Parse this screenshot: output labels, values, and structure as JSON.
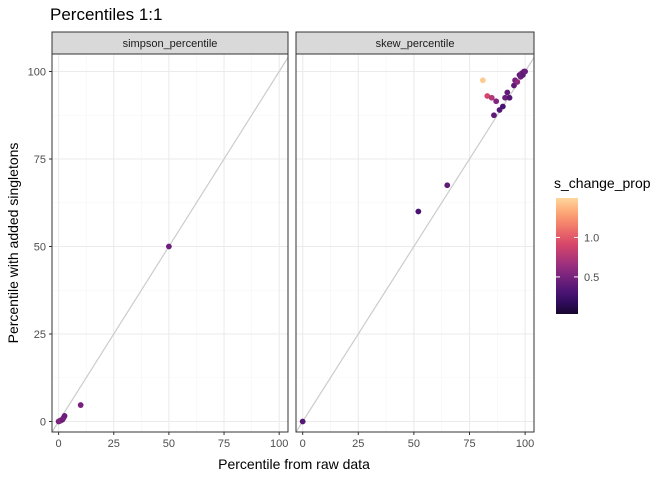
{
  "chart_data": {
    "type": "scatter",
    "title": "Percentiles 1:1",
    "xlabel": "Percentile from raw data",
    "ylabel": "Percentile with added singletons",
    "xlim": [
      -3,
      104
    ],
    "ylim": [
      -3,
      105
    ],
    "x_ticks": [
      0,
      25,
      50,
      75,
      100
    ],
    "y_ticks": [
      0,
      25,
      50,
      75,
      100
    ],
    "grid": true,
    "reference_line": "y = x",
    "colors": {
      "panel_border": "#333333",
      "strip_fill": "#d9d9d9",
      "grid_major": "#ebebeb",
      "grid_minor": "#f5f5f5",
      "reference_line": "#cccccc"
    },
    "legend": {
      "title": "s_change_prop",
      "placement": "right",
      "range": [
        0.03,
        1.5
      ],
      "ticks": [
        0.5,
        1.0
      ],
      "tick_labels": [
        "0.5",
        "1.0"
      ],
      "palette": [
        "#000004",
        "#3b0f70",
        "#8c2981",
        "#de4968",
        "#fe9f6d",
        "#fcfdbf"
      ]
    },
    "panels": [
      {
        "label": "simpson_percentile",
        "points": [
          {
            "x": 0,
            "y": 0,
            "c": 0.45
          },
          {
            "x": 0.3,
            "y": 0.1,
            "c": 0.5
          },
          {
            "x": 0.6,
            "y": 0.2,
            "c": 0.55
          },
          {
            "x": 1,
            "y": 0.3,
            "c": 0.45
          },
          {
            "x": 1.3,
            "y": 0.4,
            "c": 0.6
          },
          {
            "x": 1.8,
            "y": 0.6,
            "c": 0.4
          },
          {
            "x": 2.2,
            "y": 1,
            "c": 0.5
          },
          {
            "x": 2.7,
            "y": 1.6,
            "c": 0.45
          },
          {
            "x": 10,
            "y": 4.7,
            "c": 0.5
          },
          {
            "x": 50,
            "y": 50,
            "c": 0.45
          }
        ]
      },
      {
        "label": "skew_percentile",
        "points": [
          {
            "x": 0,
            "y": 0,
            "c": 0.35
          },
          {
            "x": 52,
            "y": 60,
            "c": 0.3
          },
          {
            "x": 65,
            "y": 67.5,
            "c": 0.4
          },
          {
            "x": 81,
            "y": 97.5,
            "c": 1.45
          },
          {
            "x": 83,
            "y": 93,
            "c": 0.9
          },
          {
            "x": 85,
            "y": 92.5,
            "c": 0.75
          },
          {
            "x": 86,
            "y": 87.5,
            "c": 0.4
          },
          {
            "x": 87,
            "y": 91.5,
            "c": 0.55
          },
          {
            "x": 88.5,
            "y": 89,
            "c": 0.35
          },
          {
            "x": 90,
            "y": 90,
            "c": 0.3
          },
          {
            "x": 91,
            "y": 92.5,
            "c": 0.45
          },
          {
            "x": 92,
            "y": 94,
            "c": 0.4
          },
          {
            "x": 93,
            "y": 92.5,
            "c": 0.35
          },
          {
            "x": 95,
            "y": 96,
            "c": 0.4
          },
          {
            "x": 95.5,
            "y": 97.5,
            "c": 0.5
          },
          {
            "x": 96.5,
            "y": 97,
            "c": 0.6
          },
          {
            "x": 97.5,
            "y": 99,
            "c": 0.35
          },
          {
            "x": 98,
            "y": 98.5,
            "c": 0.45
          },
          {
            "x": 98.5,
            "y": 99.5,
            "c": 0.5
          },
          {
            "x": 99,
            "y": 99,
            "c": 0.4
          },
          {
            "x": 99.5,
            "y": 100,
            "c": 0.35
          },
          {
            "x": 100,
            "y": 100,
            "c": 0.45
          }
        ]
      }
    ]
  }
}
